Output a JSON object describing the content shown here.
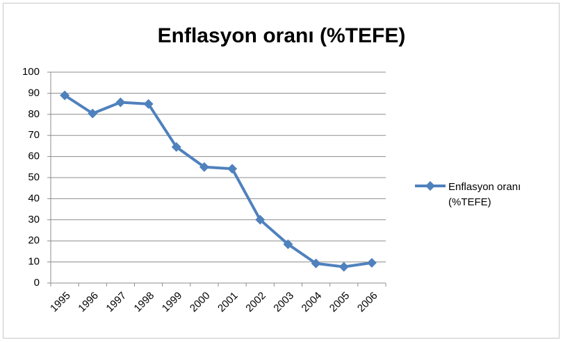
{
  "chart_data": {
    "type": "line",
    "title": "Enflasyon oranı (%TEFE)",
    "categories": [
      "1995",
      "1996",
      "1997",
      "1998",
      "1999",
      "2000",
      "2001",
      "2002",
      "2003",
      "2004",
      "2005",
      "2006"
    ],
    "series": [
      {
        "name": "Enflasyon oranı (%TEFE)",
        "color": "#4f81bd",
        "values": [
          89,
          80.4,
          85.7,
          84.9,
          64.5,
          55,
          54.2,
          30,
          18.4,
          9.3,
          7.7,
          9.6
        ]
      }
    ],
    "ylim": [
      0,
      100
    ],
    "yticks": [
      0,
      10,
      20,
      30,
      40,
      50,
      60,
      70,
      80,
      90,
      100
    ],
    "grid": true,
    "legend": "right"
  }
}
